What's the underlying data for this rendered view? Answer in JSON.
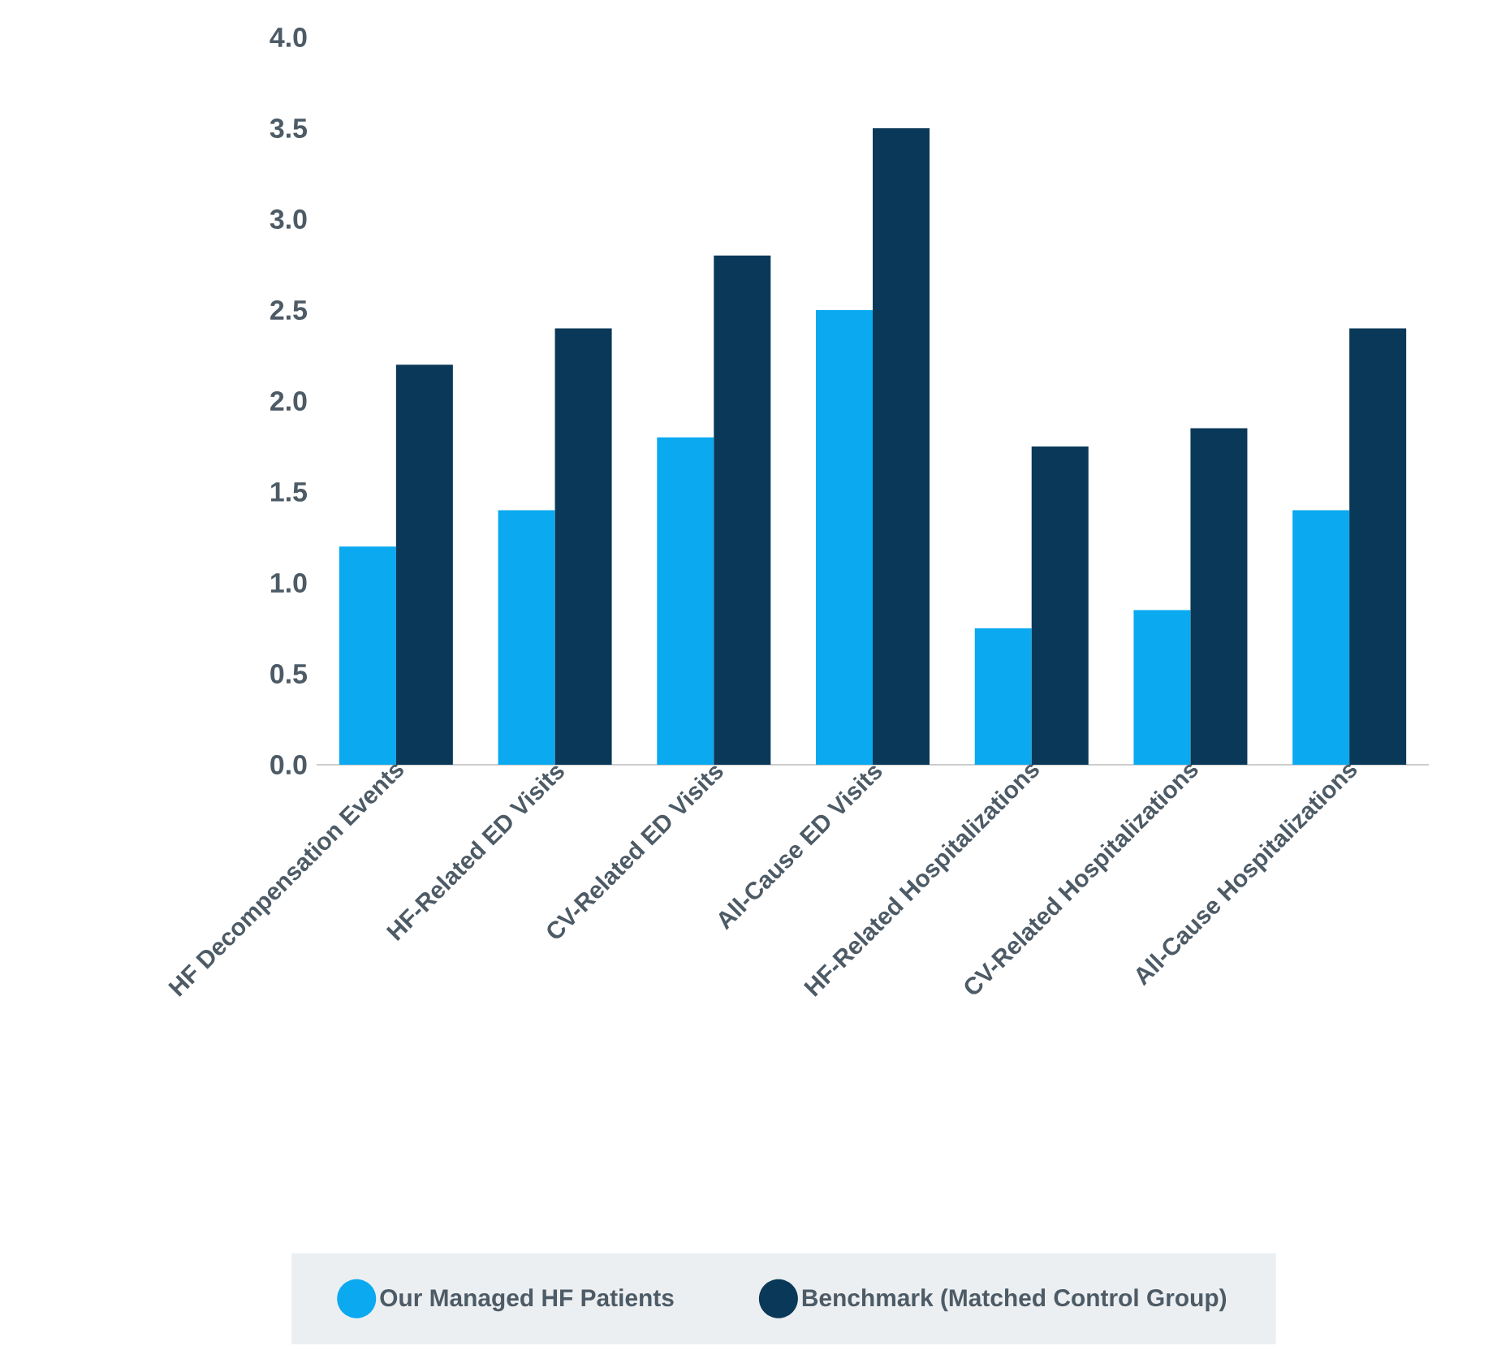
{
  "chart_data": {
    "type": "bar",
    "categories": [
      "HF Decompensation Events",
      "HF-Related ED Visits",
      "CV-Related ED Visits",
      "All-Cause ED Visits",
      "HF-Related Hospitalizations",
      "CV-Related Hospitalizations",
      "All-Cause Hospitalizations"
    ],
    "series": [
      {
        "name": "Our Managed HF Patients",
        "color": "#0aa9f0",
        "values": [
          1.2,
          1.4,
          1.8,
          2.5,
          0.75,
          0.85,
          1.4
        ]
      },
      {
        "name": "Benchmark (Matched Control Group)",
        "color": "#0a3858",
        "values": [
          2.2,
          2.4,
          2.8,
          3.5,
          1.75,
          1.85,
          2.4
        ]
      }
    ],
    "ylim": [
      0,
      4
    ],
    "yticks": [
      {
        "value": 0,
        "label": "0.0"
      },
      {
        "value": 0.5,
        "label": "0.5"
      },
      {
        "value": 1,
        "label": "1.0"
      },
      {
        "value": 1.5,
        "label": "1.5"
      },
      {
        "value": 2,
        "label": "2.0"
      },
      {
        "value": 2.5,
        "label": "2.5"
      },
      {
        "value": 3,
        "label": "3.0"
      },
      {
        "value": 3.5,
        "label": "3.5"
      },
      {
        "value": 4,
        "label": "4.0"
      }
    ],
    "legend": "bottom"
  }
}
